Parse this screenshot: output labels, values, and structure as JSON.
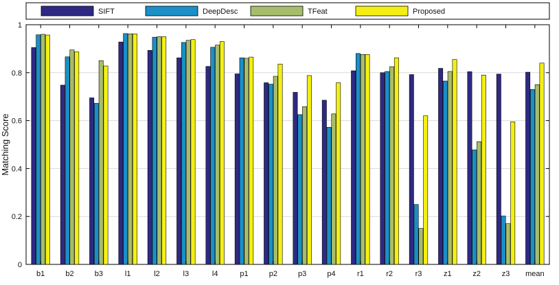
{
  "chart_data": {
    "type": "bar",
    "ylabel": "Matching Score",
    "ylim": [
      0,
      1
    ],
    "yticks": [
      "0",
      "0.2",
      "0.4",
      "0.6",
      "0.8",
      "1"
    ],
    "grid": true,
    "legend_position": "top",
    "categories": [
      "b1",
      "b2",
      "b3",
      "l1",
      "l2",
      "l3",
      "l4",
      "p1",
      "p2",
      "p3",
      "p4",
      "r1",
      "r2",
      "r3",
      "z1",
      "z2",
      "z3",
      "mean"
    ],
    "series": [
      {
        "name": "SIFT",
        "color": "#2e2a83",
        "values": [
          0.905,
          0.748,
          0.695,
          0.928,
          0.893,
          0.862,
          0.826,
          0.795,
          0.758,
          0.718,
          0.685,
          0.808,
          0.8,
          0.792,
          0.818,
          0.804,
          0.794,
          0.802
        ]
      },
      {
        "name": "DeepDesc",
        "color": "#1b8fc6",
        "values": [
          0.958,
          0.866,
          0.672,
          0.963,
          0.948,
          0.926,
          0.906,
          0.862,
          0.752,
          0.625,
          0.572,
          0.88,
          0.805,
          0.25,
          0.765,
          0.478,
          0.202,
          0.73
        ]
      },
      {
        "name": "TFeat",
        "color": "#a7bd6c",
        "values": [
          0.96,
          0.895,
          0.85,
          0.962,
          0.95,
          0.935,
          0.915,
          0.86,
          0.785,
          0.658,
          0.628,
          0.876,
          0.825,
          0.15,
          0.805,
          0.512,
          0.17,
          0.75
        ]
      },
      {
        "name": "Proposed",
        "color": "#f3ef14",
        "values": [
          0.957,
          0.887,
          0.828,
          0.962,
          0.95,
          0.938,
          0.93,
          0.865,
          0.836,
          0.788,
          0.758,
          0.876,
          0.862,
          0.62,
          0.855,
          0.79,
          0.595,
          0.84
        ]
      }
    ]
  }
}
